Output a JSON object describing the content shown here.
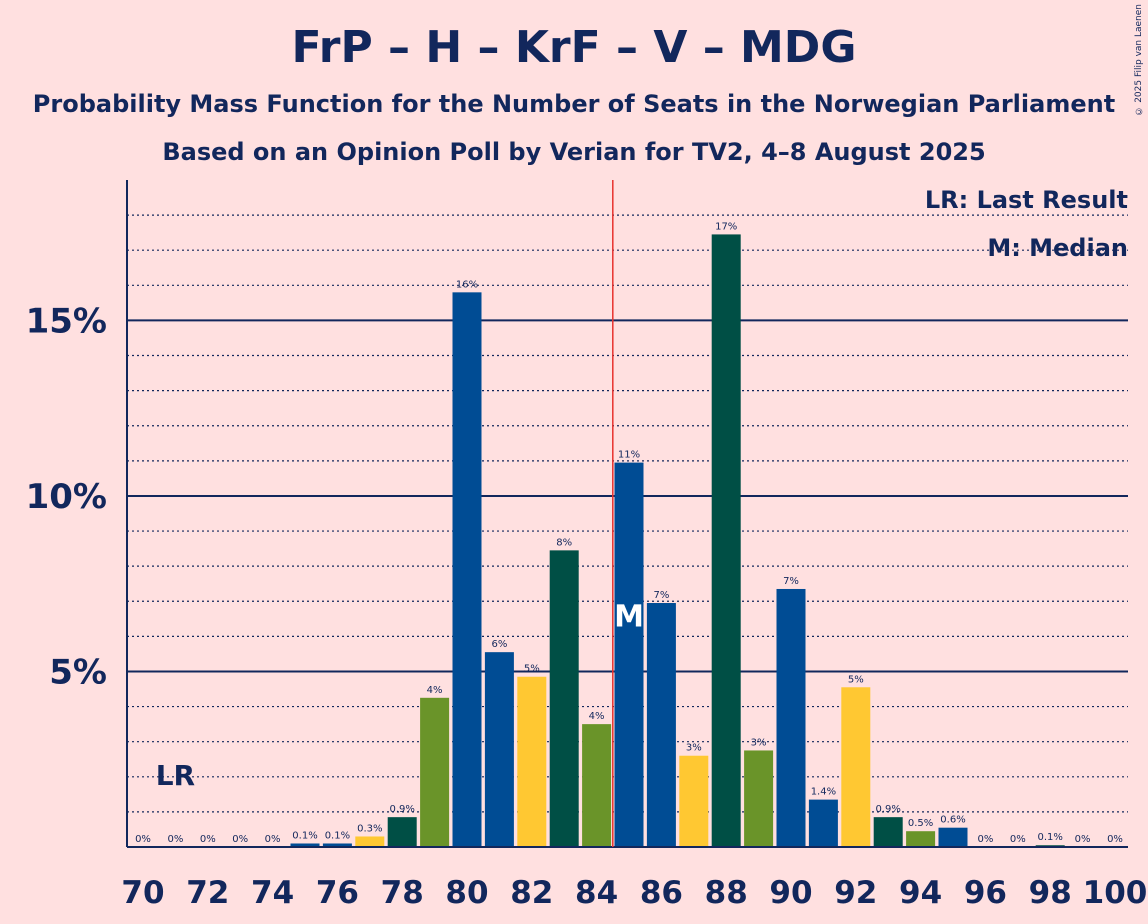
{
  "title": "FrP – H – KrF – V – MDG",
  "subtitle1": "Probability Mass Function for the Number of Seats in the Norwegian Parliament",
  "subtitle2": "Based on an Opinion Poll by Verian for TV2, 4–8 August 2025",
  "copyright": "© 2025 Filip van Laenen",
  "legend": {
    "lr": "LR: Last Result",
    "m": "M: Median"
  },
  "colors": {
    "background": "#FFE0E0",
    "text": "#12275C",
    "median_line": "#E8322E",
    "party_colors": [
      "#004C94",
      "#004C94",
      "#FFC832",
      "#004F45",
      "#6A9429"
    ]
  },
  "chart_data": {
    "type": "bar",
    "title": "FrP – H – KrF – V – MDG",
    "xlabel": "",
    "ylabel": "",
    "x_tick_labels": [
      "70",
      "72",
      "74",
      "76",
      "78",
      "80",
      "82",
      "84",
      "86",
      "88",
      "90",
      "92",
      "94",
      "96",
      "98",
      "100"
    ],
    "y_tick_labels": [
      "5%",
      "10%",
      "15%"
    ],
    "ylim": [
      0,
      19
    ],
    "grid": "dotted every 1%, solid every 5%",
    "last_result": {
      "seat": 71,
      "label": "LR"
    },
    "median": {
      "seat": 85,
      "label": "M"
    },
    "median_line_between": [
      84,
      85
    ],
    "seats": [
      70,
      71,
      72,
      73,
      74,
      75,
      76,
      77,
      78,
      79,
      80,
      81,
      82,
      83,
      84,
      85,
      86,
      87,
      88,
      89,
      90,
      91,
      92,
      93,
      94,
      95,
      96,
      97,
      98,
      99,
      100
    ],
    "values": [
      0,
      0,
      0,
      0,
      0,
      0.1,
      0.1,
      0.3,
      0.85,
      4.25,
      15.8,
      5.55,
      4.85,
      8.45,
      3.5,
      10.95,
      6.95,
      2.6,
      17.45,
      2.75,
      7.35,
      1.35,
      4.55,
      0.85,
      0.45,
      0.55,
      0,
      0,
      0.05,
      0,
      0
    ],
    "labels": [
      "0%",
      "0%",
      "0%",
      "0%",
      "0%",
      "0.1%",
      "0.1%",
      "0.3%",
      "0.9%",
      "4%",
      "16%",
      "6%",
      "5%",
      "8%",
      "4%",
      "11%",
      "7%",
      "3%",
      "17%",
      "3%",
      "7%",
      "1.4%",
      "5%",
      "0.9%",
      "0.5%",
      "0.6%",
      "0%",
      "0%",
      "0.1%",
      "0%",
      "0%"
    ]
  }
}
